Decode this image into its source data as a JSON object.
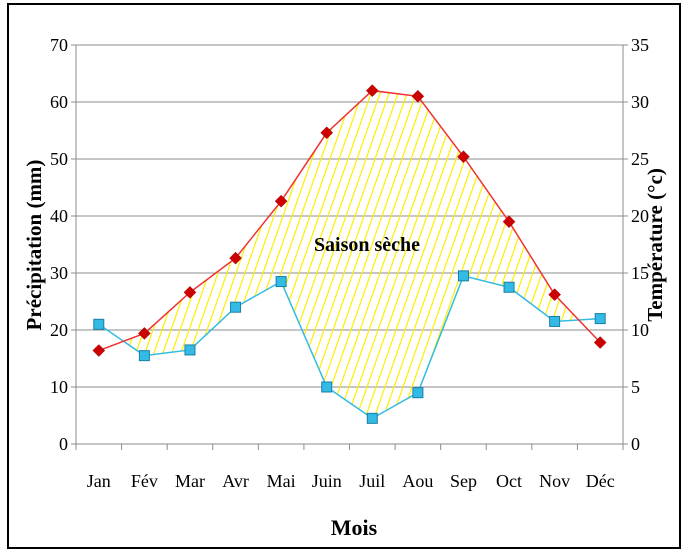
{
  "chart_data": {
    "type": "line",
    "title": "",
    "xlabel": "Mois",
    "ylabel": "Précipitation (mm)",
    "y2label": "Température (°c)",
    "categories": [
      "Jan",
      "Fév",
      "Mar",
      "Avr",
      "Mai",
      "Juin",
      "Juil",
      "Aou",
      "Sep",
      "Oct",
      "Nov",
      "Déc"
    ],
    "ylim": [
      0,
      70
    ],
    "y2lim": [
      0,
      35
    ],
    "yticks": [
      "0",
      "10",
      "20",
      "30",
      "40",
      "50",
      "60",
      "70"
    ],
    "y2ticks": [
      "0",
      "5",
      "10",
      "15",
      "20",
      "25",
      "30",
      "35"
    ],
    "grid": true,
    "series": [
      {
        "axis": "left",
        "color": "#33bbe5",
        "marker": "square",
        "values": [
          21,
          15.5,
          16.5,
          24,
          28.5,
          10,
          4.5,
          9,
          29.5,
          27.5,
          21.5,
          22
        ]
      },
      {
        "axis": "right",
        "color": "#ee3333",
        "marker": "diamond",
        "marker_color": "#cc0000",
        "values": [
          8.2,
          9.7,
          13.3,
          16.3,
          21.3,
          27.3,
          31,
          30.5,
          25.2,
          19.5,
          13.1,
          8.9
        ]
      }
    ],
    "annotation": "Saison sèche",
    "hatch_color": "#ffee00"
  }
}
